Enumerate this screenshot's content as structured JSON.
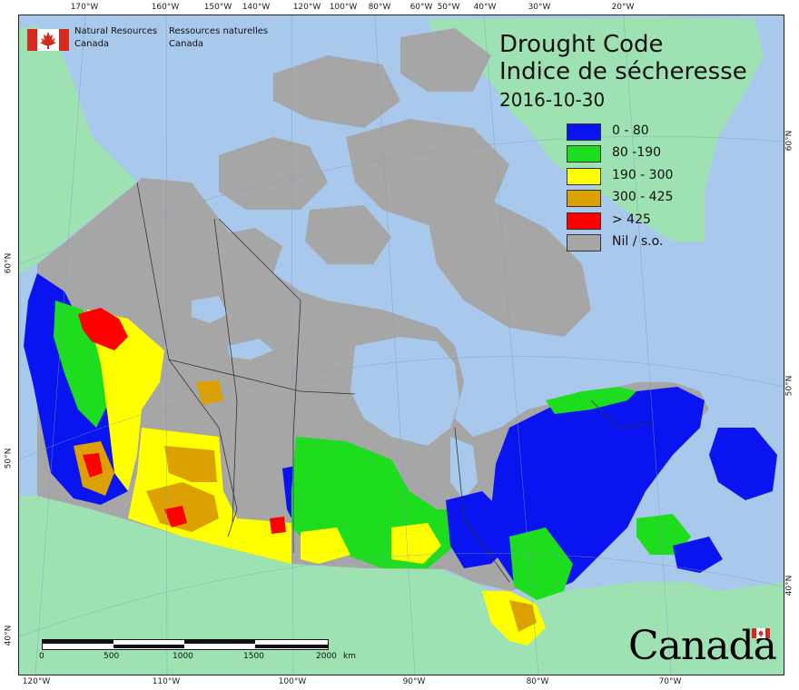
{
  "agency": {
    "name_en_line1": "Natural Resources",
    "name_en_line2": "Canada",
    "name_fr_line1": "Ressources naturelles",
    "name_fr_line2": "Canada",
    "flag_icon": "canada-flag-icon"
  },
  "map": {
    "title_en": "Drought Code",
    "title_fr": "Indice de sécheresse",
    "date": "2016-10-30",
    "colors": {
      "ocean": "#a8c8ec",
      "foreign_land": "#9ee2b4",
      "no_data": "#a6a6a6",
      "class_0_80": "#0a14f0",
      "class_80_190": "#1edc1e",
      "class_190_300": "#ffff00",
      "class_300_425": "#dca000",
      "class_gt_425": "#ff0000"
    }
  },
  "legend": {
    "items": [
      {
        "label": "0 - 80",
        "color": "#0a14f0"
      },
      {
        "label": "80 -190",
        "color": "#1edc1e"
      },
      {
        "label": "190 - 300",
        "color": "#ffff00"
      },
      {
        "label": "300 - 425",
        "color": "#dca000"
      },
      {
        "label": "> 425",
        "color": "#ff0000"
      },
      {
        "label": "Nil / s.o.",
        "color": "#a6a6a6"
      }
    ]
  },
  "graticule": {
    "top": [
      "170°W",
      "160°W",
      "150°W",
      "140°W",
      "120°W",
      "100°W",
      "80°W",
      "60°W",
      "50°W",
      "40°W",
      "30°W",
      "20°W"
    ],
    "bottom": [
      "120°W",
      "110°W",
      "100°W",
      "90°W",
      "80°W",
      "70°W"
    ],
    "left": [
      "60°N",
      "50°N",
      "40°N"
    ],
    "right": [
      "60°N",
      "50°N",
      "40°N"
    ]
  },
  "scalebar": {
    "labels": [
      "0",
      "500",
      "1000",
      "1500",
      "2000",
      "km"
    ]
  },
  "wordmark": "Canada"
}
